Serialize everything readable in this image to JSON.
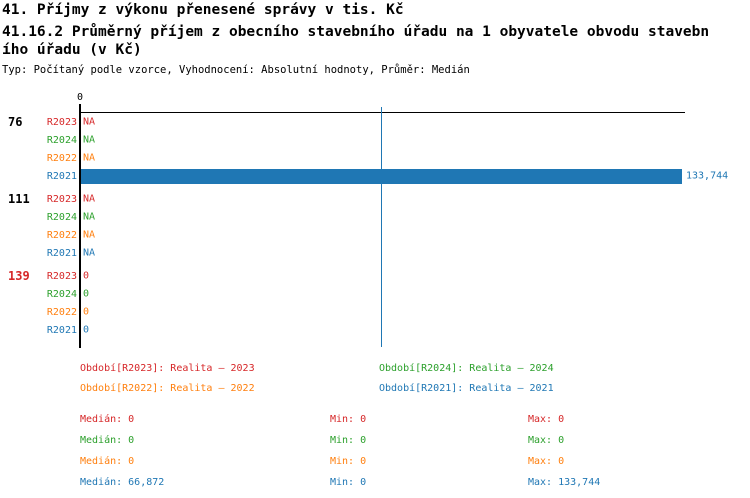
{
  "header": {
    "title": "41. Příjmy z výkonu přenesené správy v tis. Kč",
    "subtitle_line1": "41.16.2 Průměrný příjem z obecního stavebního úřadu na 1 obyvatele obvodu stavebn",
    "subtitle_line2": "ího úřadu (v Kč)",
    "meta": "Typ: Počítaný podle vzorce, Vyhodnocení: Absolutní hodnoty, Průměr: Medián"
  },
  "colors": {
    "series": {
      "R2023": "#d62728",
      "R2024": "#2ca02c",
      "R2022": "#ff7f0e",
      "R2021": "#1f77b4"
    },
    "axis": "#000000",
    "median_line": "#1f77b4"
  },
  "chart_data": {
    "type": "bar",
    "orientation": "horizontal",
    "title": "41.16.2 Průměrný příjem z obecního stavebního úřadu na 1 obyvatele obvodu stavebního úřadu (v Kč)",
    "x_axis": {
      "tick_labels": [
        "0"
      ],
      "min": 0,
      "max_rendered": 133744
    },
    "median_line": {
      "value": 66872
    },
    "series_order": [
      "R2023",
      "R2024",
      "R2022",
      "R2021"
    ],
    "groups": [
      {
        "label": "76",
        "label_color": "#000000",
        "rows": [
          {
            "series": "R2023",
            "text": "NA",
            "value": null,
            "bar": false
          },
          {
            "series": "R2024",
            "text": "NA",
            "value": null,
            "bar": false
          },
          {
            "series": "R2022",
            "text": "NA",
            "value": null,
            "bar": false
          },
          {
            "series": "R2021",
            "text": "133,744",
            "value": 133744,
            "bar": true
          }
        ]
      },
      {
        "label": "111",
        "label_color": "#000000",
        "rows": [
          {
            "series": "R2023",
            "text": "NA",
            "value": null,
            "bar": false
          },
          {
            "series": "R2024",
            "text": "NA",
            "value": null,
            "bar": false
          },
          {
            "series": "R2022",
            "text": "NA",
            "value": null,
            "bar": false
          },
          {
            "series": "R2021",
            "text": "NA",
            "value": null,
            "bar": false
          }
        ]
      },
      {
        "label": "139",
        "label_color": "#d62728",
        "rows": [
          {
            "series": "R2023",
            "text": "0",
            "value": 0,
            "bar": false
          },
          {
            "series": "R2024",
            "text": "0",
            "value": 0,
            "bar": false
          },
          {
            "series": "R2022",
            "text": "0",
            "value": 0,
            "bar": false
          },
          {
            "series": "R2021",
            "text": "0",
            "value": 0,
            "bar": false
          }
        ]
      }
    ]
  },
  "legend": {
    "items": [
      {
        "label": "Období[R2023]: Realita – 2023",
        "color": "#d62728"
      },
      {
        "label": "Období[R2024]: Realita – 2024",
        "color": "#2ca02c"
      },
      {
        "label": "Období[R2022]: Realita – 2022",
        "color": "#ff7f0e"
      },
      {
        "label": "Období[R2021]: Realita – 2021",
        "color": "#1f77b4"
      }
    ]
  },
  "stats": {
    "labels": {
      "median": "Medián:",
      "min": "Min:",
      "max": "Max:"
    },
    "rows": [
      {
        "color": "#d62728",
        "median": "0",
        "min": "0",
        "max": "0"
      },
      {
        "color": "#2ca02c",
        "median": "0",
        "min": "0",
        "max": "0"
      },
      {
        "color": "#ff7f0e",
        "median": "0",
        "min": "0",
        "max": "0"
      },
      {
        "color": "#1f77b4",
        "median": "66,872",
        "min": "0",
        "max": "133,744"
      }
    ]
  }
}
